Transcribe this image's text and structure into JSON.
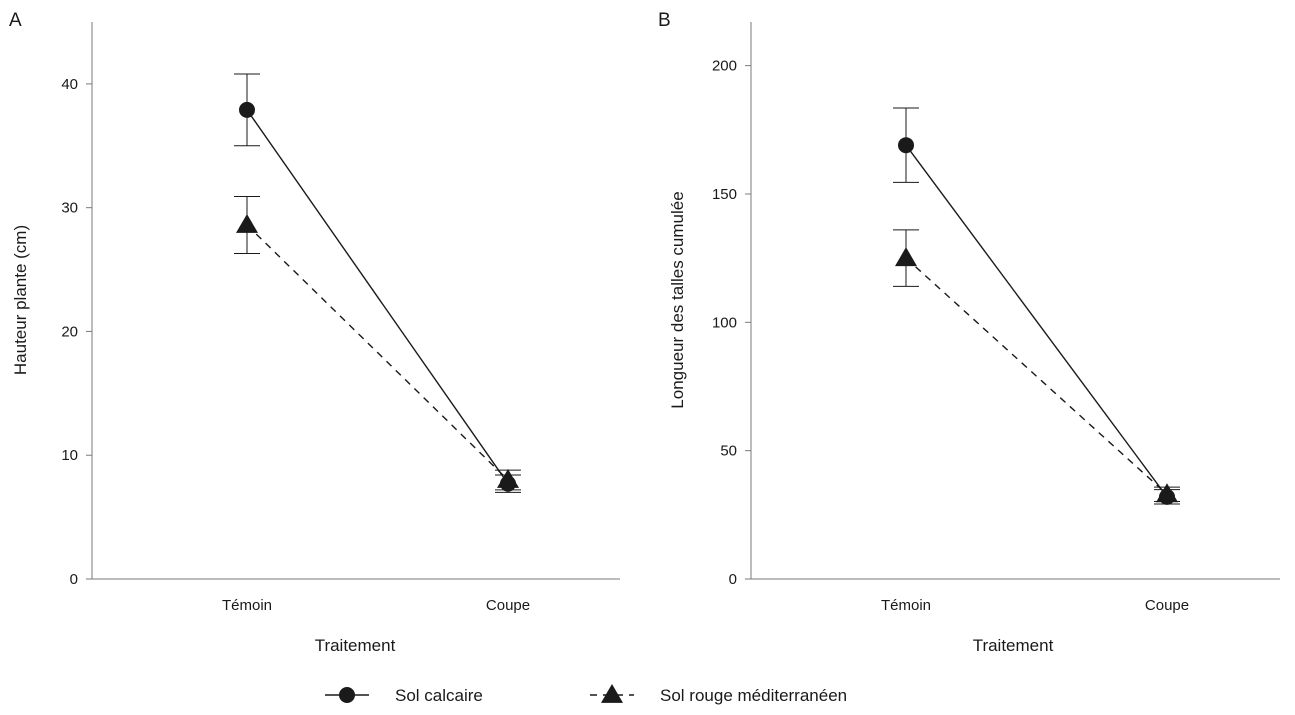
{
  "chart_data": [
    {
      "panel": "A",
      "type": "line",
      "xlabel": "Traitement",
      "ylabel": "Hauteur plante (cm)",
      "categories": [
        "Témoin",
        "Coupe"
      ],
      "yticks": [
        0,
        10,
        20,
        30,
        40
      ],
      "ylim": [
        0,
        45
      ],
      "grid": false,
      "series": [
        {
          "name": "Sol calcaire",
          "marker": "circle",
          "line": "solid",
          "values": [
            37.9,
            7.7
          ],
          "errors": [
            2.9,
            0.7
          ]
        },
        {
          "name": "Sol rouge méditerranéen",
          "marker": "triangle",
          "line": "dashed",
          "values": [
            28.6,
            8.0
          ],
          "errors": [
            2.3,
            0.8
          ]
        }
      ]
    },
    {
      "panel": "B",
      "type": "line",
      "xlabel": "Traitement",
      "ylabel": "Longueur des talles cumulée",
      "categories": [
        "Témoin",
        "Coupe"
      ],
      "yticks": [
        0,
        50,
        100,
        150,
        200
      ],
      "ylim": [
        0,
        217
      ],
      "grid": false,
      "series": [
        {
          "name": "Sol calcaire",
          "marker": "circle",
          "line": "solid",
          "values": [
            169,
            32
          ],
          "errors": [
            14.5,
            2.8
          ]
        },
        {
          "name": "Sol rouge méditerranéen",
          "marker": "triangle",
          "line": "dashed",
          "values": [
            125,
            33
          ],
          "errors": [
            11,
            2.8
          ]
        }
      ]
    }
  ],
  "legend": {
    "position": "bottom-center",
    "items": [
      {
        "label": "Sol calcaire",
        "marker": "circle",
        "line": "solid"
      },
      {
        "label": "Sol rouge méditerranéen",
        "marker": "triangle",
        "line": "dashed"
      }
    ]
  },
  "colors": {
    "ink": "#1a1a1a",
    "background": "#ffffff"
  }
}
